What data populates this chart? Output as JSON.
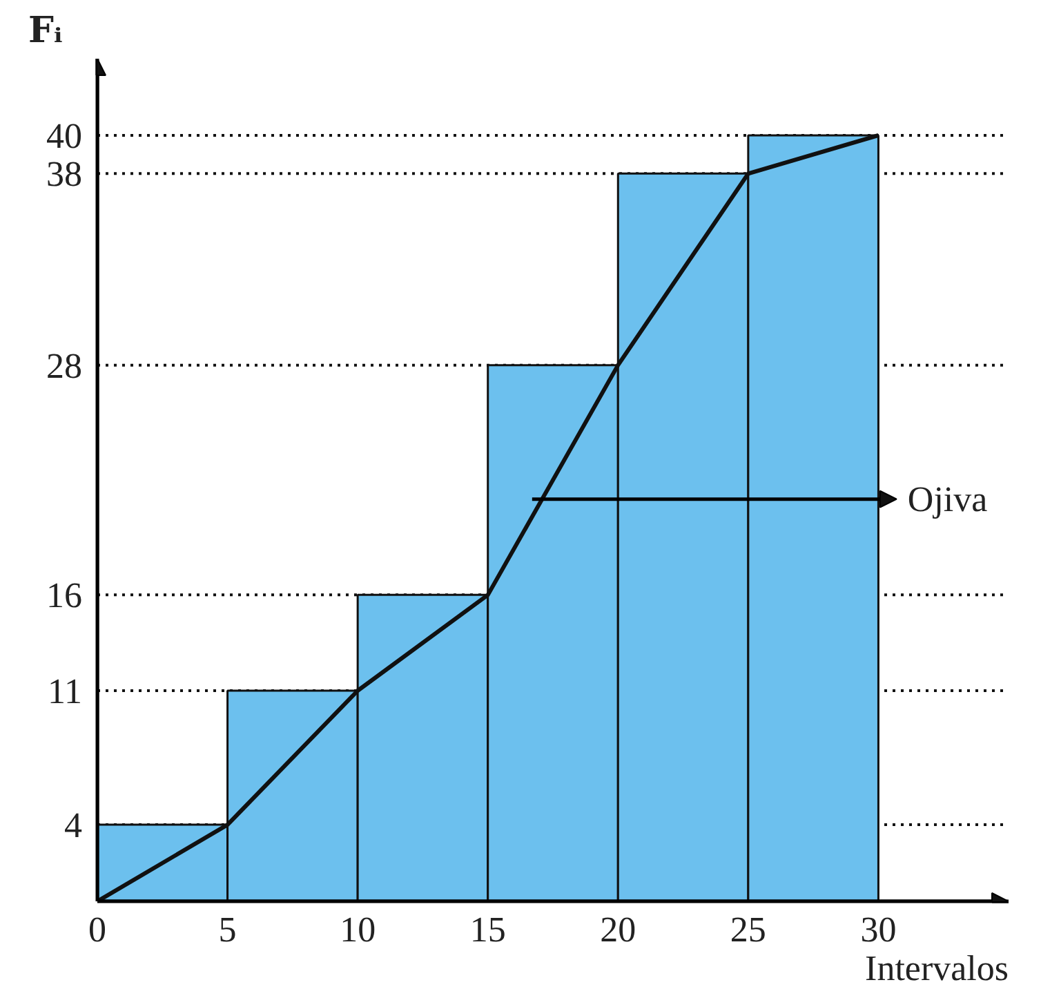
{
  "chart_data": {
    "type": "histogram",
    "xlabel": "Intervalos",
    "ylabel": "Fᵢ",
    "bins": [
      0,
      5,
      10,
      15,
      20,
      25,
      30
    ],
    "values": [
      4,
      11,
      16,
      28,
      38,
      40
    ],
    "color": "#6cc0ee",
    "series": [
      {
        "type": "line",
        "color": "#111111",
        "x": [
          0,
          5,
          10,
          15,
          20,
          25,
          30
        ],
        "values": [
          0,
          4,
          11,
          16,
          28,
          38,
          40
        ]
      }
    ],
    "xlim": [
      0,
      35
    ],
    "ylim": [
      0,
      44
    ],
    "xticks": [
      0,
      5,
      10,
      15,
      20,
      25,
      30
    ],
    "yticks": [
      4,
      11,
      16,
      28,
      38,
      40
    ],
    "ref_lines": [
      {
        "axis": "y",
        "value": 4,
        "line_style": "dotted"
      },
      {
        "axis": "y",
        "value": 11,
        "line_style": "dotted"
      },
      {
        "axis": "y",
        "value": 16,
        "line_style": "dotted"
      },
      {
        "axis": "y",
        "value": 28,
        "line_style": "dotted"
      },
      {
        "axis": "y",
        "value": 38,
        "line_style": "dotted"
      },
      {
        "axis": "y",
        "value": 40,
        "line_style": "dotted"
      }
    ],
    "annotations": [
      {
        "text": "Ojiva",
        "x": 16.7,
        "y": 21
      }
    ],
    "grid": false
  }
}
